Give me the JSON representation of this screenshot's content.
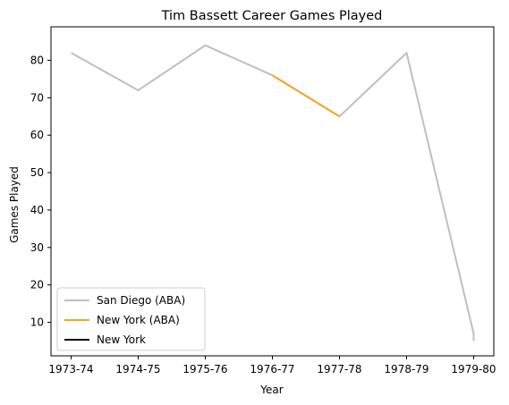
{
  "chart_data": {
    "type": "line",
    "title": "Tim Bassett Career Games Played",
    "xlabel": "Year",
    "ylabel": "Games Played",
    "categories": [
      "1973-74",
      "1974-75",
      "1975-76",
      "1976-77",
      "1977-78",
      "1978-79",
      "1979-80"
    ],
    "y_ticks": [
      10,
      20,
      30,
      40,
      50,
      60,
      70,
      80
    ],
    "ylim": [
      1.05,
      88.95
    ],
    "grid": false,
    "legend_position": "bottom-left",
    "series": [
      {
        "name": "San Diego (ABA)",
        "color": "#bfbfbf",
        "points": [
          {
            "x": "1973-74",
            "y": 82
          },
          {
            "x": "1974-75",
            "y": 72
          },
          {
            "x": "1975-76",
            "y": 84
          },
          {
            "x": "1976-77",
            "y": 76
          },
          {
            "x": "1977-78",
            "y": 65
          },
          {
            "x": "1978-79",
            "y": 82
          },
          {
            "x": "1979-80",
            "y": 7
          },
          {
            "x": "1979-80",
            "y": 5
          }
        ]
      },
      {
        "name": "New York (ABA)",
        "color": "#f5a623",
        "points": [
          {
            "x": "1976-77",
            "y": 76
          },
          {
            "x": "1977-78",
            "y": 65
          }
        ]
      },
      {
        "name": "New York",
        "color": "#000000",
        "points": []
      }
    ]
  }
}
